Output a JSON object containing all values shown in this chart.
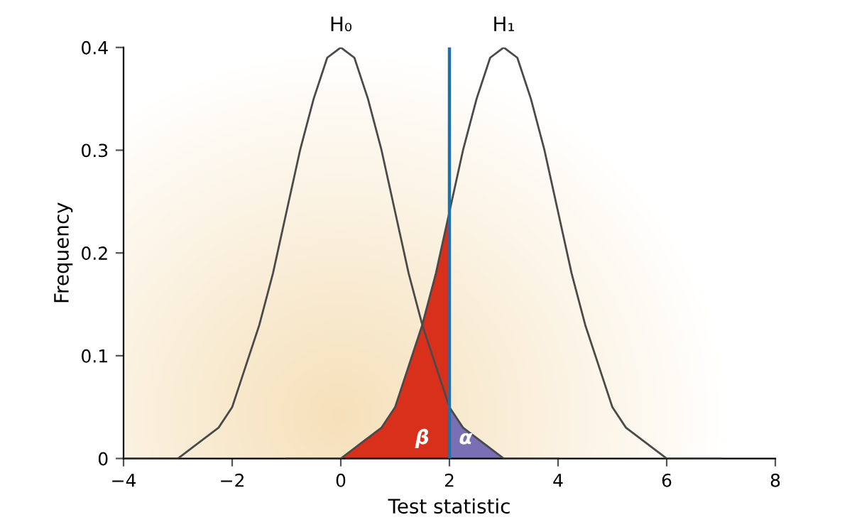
{
  "chart_data": {
    "type": "line",
    "xlabel": "Test statistic",
    "ylabel": "Frequency",
    "xlim": [
      -4,
      8
    ],
    "xticks": [
      {
        "value": -4,
        "label": "−4"
      },
      {
        "value": -2,
        "label": "−2"
      },
      0,
      2,
      4,
      6,
      8
    ],
    "ylim": [
      0,
      0.4
    ],
    "yticks": [
      0,
      0.1,
      0.2,
      0.3,
      0.4
    ],
    "grid": false,
    "legend": false,
    "series": [
      {
        "type": "area",
        "color": "#d9301c",
        "x": [
          0,
          0.25,
          0.5,
          0.75,
          1,
          1.25,
          1.5,
          1.75,
          2
        ],
        "values": [
          0.0,
          0.01,
          0.02,
          0.03,
          0.05,
          0.09,
          0.13,
          0.18,
          0.24
        ]
      },
      {
        "type": "area",
        "color": "#7a6eb5",
        "x": [
          2,
          2.25,
          2.5,
          2.75,
          3,
          3.25,
          3.5,
          3.75,
          4
        ],
        "values": [
          0.05,
          0.03,
          0.02,
          0.01,
          0.0,
          0.0,
          0.0,
          0.0,
          0.0
        ]
      },
      {
        "name": "H₀",
        "color": "#4a4a4a",
        "x": [
          -4,
          -3.75,
          -3.5,
          -3.25,
          -3,
          -2.75,
          -2.5,
          -2.25,
          -2,
          -1.75,
          -1.5,
          -1.25,
          -1,
          -0.75,
          -0.5,
          -0.25,
          0,
          0.25,
          0.5,
          0.75,
          1,
          1.25,
          1.5,
          1.75,
          2,
          2.25,
          2.5,
          2.75,
          3,
          3.25,
          3.5,
          3.75,
          4
        ],
        "values": [
          0,
          0,
          0,
          0,
          0.0,
          0.01,
          0.02,
          0.03,
          0.05,
          0.09,
          0.13,
          0.18,
          0.24,
          0.3,
          0.35,
          0.39,
          0.4,
          0.39,
          0.35,
          0.3,
          0.24,
          0.18,
          0.13,
          0.09,
          0.05,
          0.03,
          0.02,
          0.01,
          0.0,
          0,
          0,
          0,
          0
        ]
      },
      {
        "name": "H₁",
        "color": "#4a4a4a",
        "x": [
          -1,
          -0.75,
          -0.5,
          -0.25,
          0,
          0.25,
          0.5,
          0.75,
          1,
          1.25,
          1.5,
          1.75,
          2,
          2.25,
          2.5,
          2.75,
          3,
          3.25,
          3.5,
          3.75,
          4,
          4.25,
          4.5,
          4.75,
          5,
          5.25,
          5.5,
          5.75,
          6,
          6.25,
          6.5,
          6.75,
          7
        ],
        "values": [
          0,
          0,
          0,
          0,
          0.0,
          0.01,
          0.02,
          0.03,
          0.05,
          0.09,
          0.13,
          0.18,
          0.24,
          0.3,
          0.35,
          0.39,
          0.4,
          0.39,
          0.35,
          0.3,
          0.24,
          0.18,
          0.13,
          0.09,
          0.05,
          0.03,
          0.02,
          0.01,
          0.0,
          0,
          0,
          0,
          0
        ]
      }
    ],
    "ref_lines": [
      {
        "axis": "x",
        "value": 2,
        "color": "#1f6fa8"
      }
    ],
    "annotations": [
      {
        "text": "β",
        "x": 1.5,
        "y": 0.0
      },
      {
        "text": "α",
        "x": 2.3,
        "y": 0.0
      }
    ]
  }
}
